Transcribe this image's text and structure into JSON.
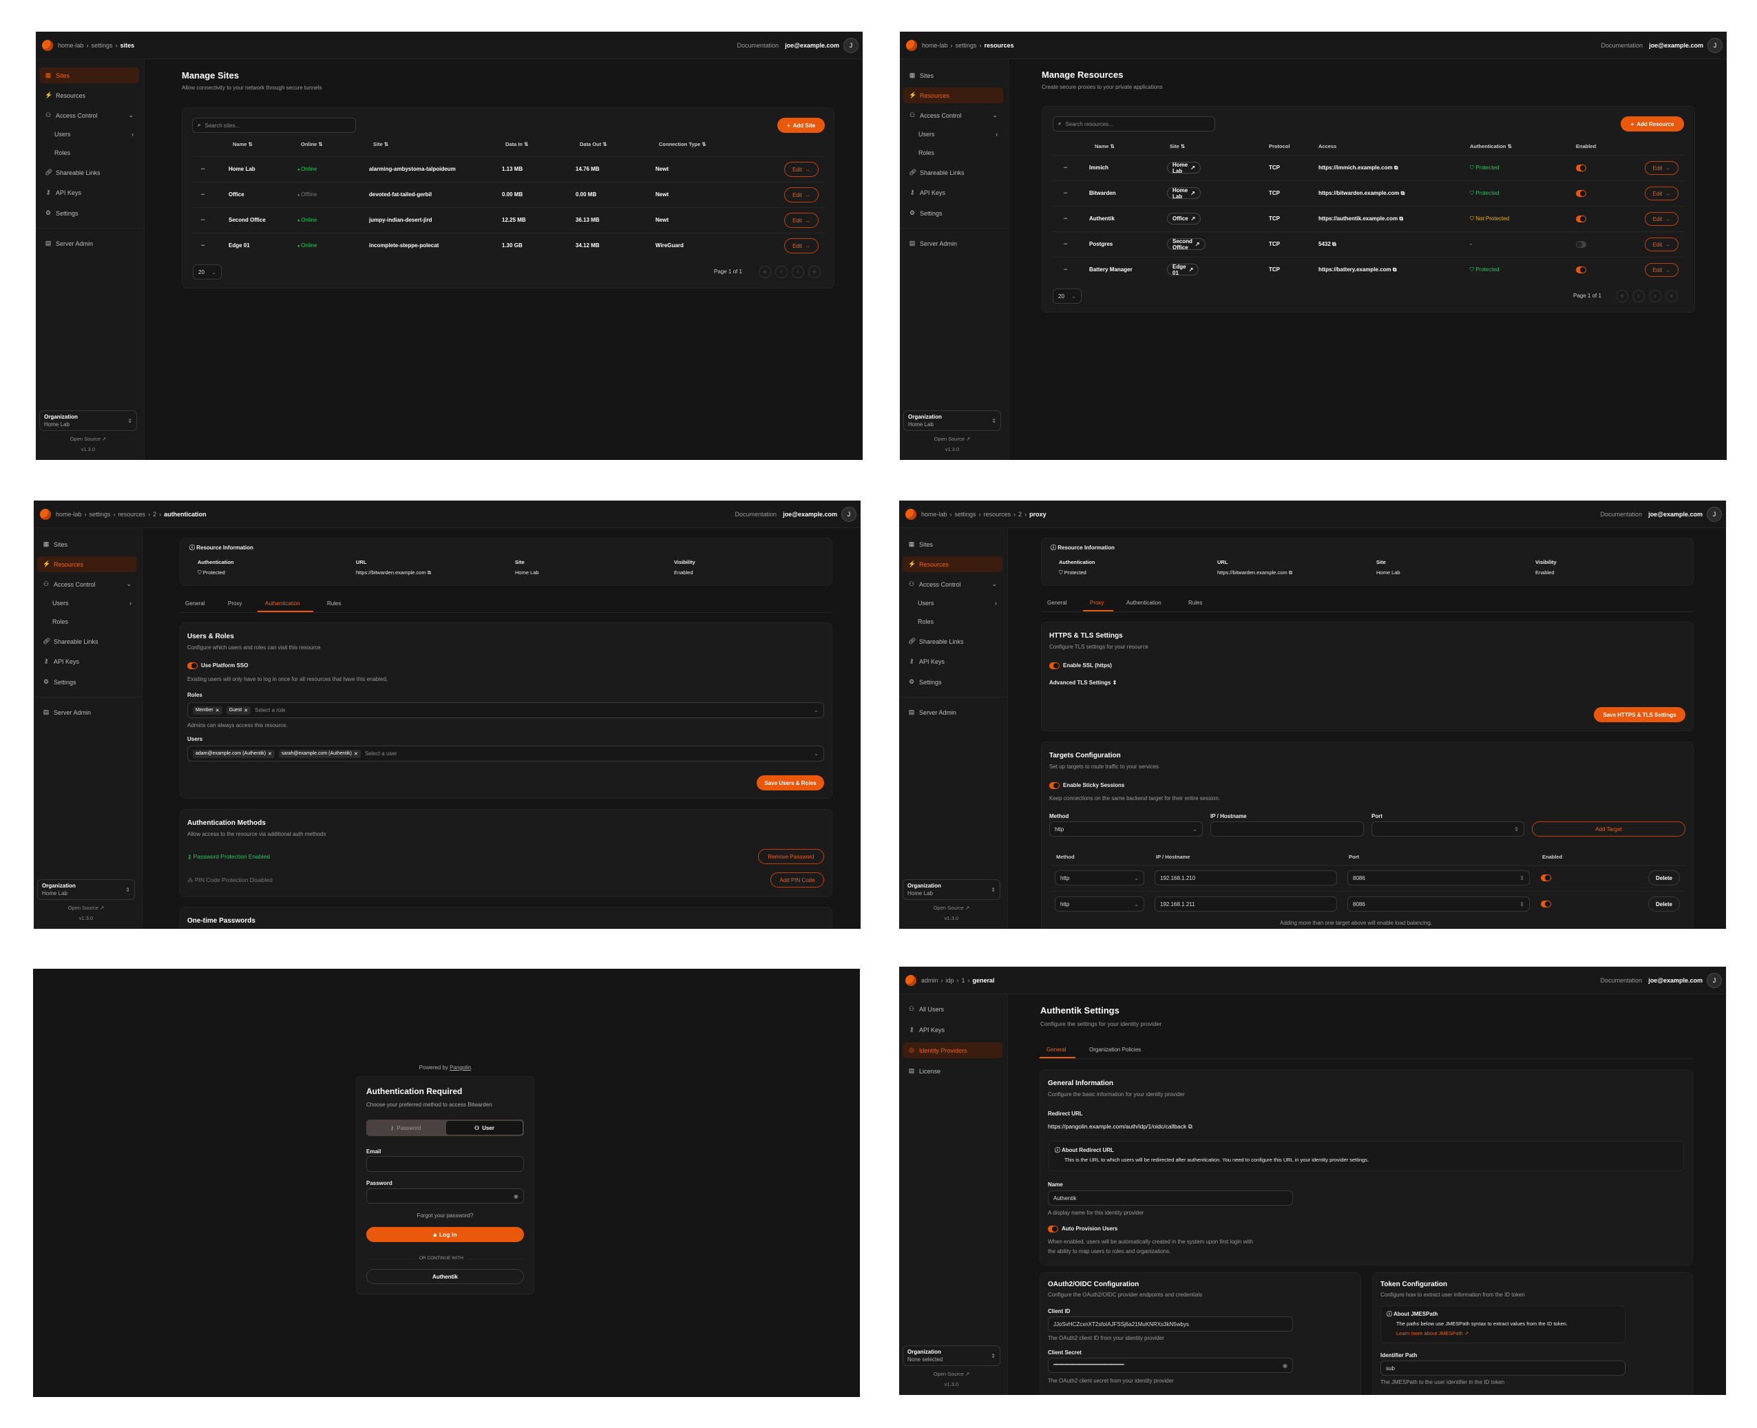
{
  "common": {
    "documentation": "Documentation",
    "user_email": "joe@example.com",
    "avatar_initial": "J",
    "accent_color": "#ea580c"
  },
  "org_sidebar": {
    "items": [
      {
        "label": "Sites",
        "icon": "sites-icon"
      },
      {
        "label": "Resources",
        "icon": "resources-icon"
      },
      {
        "label": "Access Control",
        "icon": "access-control-icon",
        "chevron": "down"
      },
      {
        "label": "Users",
        "sub": true,
        "chevron": "right"
      },
      {
        "label": "Roles",
        "sub": true
      },
      {
        "label": "Shareable Links",
        "icon": "link-icon"
      },
      {
        "label": "API Keys",
        "icon": "key-icon"
      },
      {
        "label": "Settings",
        "icon": "gear-icon"
      },
      {
        "label": "Server Admin",
        "icon": "server-icon"
      }
    ],
    "org_label": "Organization",
    "org_value": "Home Lab",
    "open_source": "Open Source",
    "version": "v1.3.0"
  },
  "admin_sidebar": {
    "items": [
      {
        "label": "All Users",
        "icon": "users-icon"
      },
      {
        "label": "API Keys",
        "icon": "key-icon"
      },
      {
        "label": "Identity Providers",
        "icon": "fingerprint-icon"
      },
      {
        "label": "License",
        "icon": "license-icon"
      }
    ],
    "org_label": "Organization",
    "org_value": "None selected",
    "open_source": "Open Source",
    "version": "v1.3.0"
  },
  "sites_page": {
    "breadcrumb": [
      "home-lab",
      "settings",
      "sites"
    ],
    "title": "Manage Sites",
    "subtitle": "Allow connectivity to your network through secure tunnels",
    "search_placeholder": "Search sites...",
    "add_button": "Add Site",
    "columns": [
      "Name",
      "Online",
      "Site",
      "Data In",
      "Data Out",
      "Connection Type"
    ],
    "rows": [
      {
        "name": "Home Lab",
        "online": "Online",
        "status": "online",
        "site": "alarming-ambystoma-talpoideum",
        "data_in": "1.13 MB",
        "data_out": "14.76 MB",
        "connection_type": "Newt"
      },
      {
        "name": "Office",
        "online": "Offline",
        "status": "offline",
        "site": "devoted-fat-tailed-gerbil",
        "data_in": "0.00 MB",
        "data_out": "0.00 MB",
        "connection_type": "Newt"
      },
      {
        "name": "Second Office",
        "online": "Online",
        "status": "online",
        "site": "jumpy-indian-desert-jird",
        "data_in": "12.25 MB",
        "data_out": "36.13 MB",
        "connection_type": "Newt"
      },
      {
        "name": "Edge 01",
        "online": "Online",
        "status": "online",
        "site": "incomplete-steppe-polecat",
        "data_in": "1.30 GB",
        "data_out": "34.12 MB",
        "connection_type": "WireGuard"
      }
    ],
    "edit_label": "Edit",
    "page_size": "20",
    "page_info": "Page 1 of 1"
  },
  "resources_page": {
    "breadcrumb": [
      "home-lab",
      "settings",
      "resources"
    ],
    "title": "Manage Resources",
    "subtitle": "Create secure proxies to your private applications",
    "search_placeholder": "Search resources...",
    "add_button": "Add Resource",
    "columns": [
      "Name",
      "Site",
      "Protocol",
      "Access",
      "Authentication",
      "Enabled"
    ],
    "rows": [
      {
        "name": "Immich",
        "site": "Home Lab",
        "protocol": "TCP",
        "access": "https://immich.example.com",
        "auth": "Protected",
        "auth_state": "protected",
        "enabled": true
      },
      {
        "name": "Bitwarden",
        "site": "Home Lab",
        "protocol": "TCP",
        "access": "https://bitwarden.example.com",
        "auth": "Protected",
        "auth_state": "protected",
        "enabled": true
      },
      {
        "name": "Authentik",
        "site": "Office",
        "protocol": "TCP",
        "access": "https://authentik.example.com",
        "auth": "Not Protected",
        "auth_state": "not-protected",
        "enabled": true
      },
      {
        "name": "Postgres",
        "site": "Second Office",
        "protocol": "TCP",
        "access": "5432",
        "auth": "-",
        "auth_state": "none",
        "enabled": false
      },
      {
        "name": "Battery Manager",
        "site": "Edge 01",
        "protocol": "TCP",
        "access": "https://battery.example.com",
        "auth": "Protected",
        "auth_state": "protected",
        "enabled": true
      }
    ],
    "edit_label": "Edit",
    "page_size": "20",
    "page_info": "Page 1 of 1"
  },
  "resource_info": {
    "title": "Resource Information",
    "auth_label": "Authentication",
    "auth_value": "Protected",
    "url_label": "URL",
    "url_value": "https://bitwarden.example.com",
    "site_label": "Site",
    "site_value": "Home Lab",
    "visibility_label": "Visibility",
    "visibility_value": "Enabled",
    "tabs": [
      "General",
      "Proxy",
      "Authentication",
      "Rules"
    ]
  },
  "auth_page": {
    "breadcrumb": [
      "home-lab",
      "settings",
      "resources",
      "2",
      "authentication"
    ],
    "users_roles": {
      "title": "Users & Roles",
      "desc": "Configure which users and roles can visit this resource",
      "sso_label": "Use Platform SSO",
      "sso_enabled": true,
      "sso_help": "Existing users will only have to log in once for all resources that have this enabled.",
      "roles_label": "Roles",
      "roles": [
        "Member",
        "Guest"
      ],
      "roles_placeholder": "Select a role",
      "roles_help": "Admins can always access this resource.",
      "users_label": "Users",
      "users": [
        "adam@example.com (Authentik)",
        "sarah@example.com (Authentik)"
      ],
      "users_placeholder": "Select a user",
      "save_button": "Save Users & Roles"
    },
    "auth_methods": {
      "title": "Authentication Methods",
      "desc": "Allow access to the resource via additional auth methods",
      "password_status": "Password Protection Enabled",
      "remove_password": "Remove Password",
      "pin_status": "PIN Code Protection Disabled",
      "add_pin": "Add PIN Code"
    },
    "otp_title": "One-time Passwords"
  },
  "proxy_page": {
    "breadcrumb": [
      "home-lab",
      "settings",
      "resources",
      "2",
      "proxy"
    ],
    "tls": {
      "title": "HTTPS & TLS Settings",
      "desc": "Configure TLS settings for your resource",
      "ssl_label": "Enable SSL (https)",
      "ssl_enabled": true,
      "advanced_label": "Advanced TLS Settings",
      "save_button": "Save HTTPS & TLS Settings"
    },
    "targets": {
      "title": "Targets Configuration",
      "desc": "Set up targets to route traffic to your services",
      "sticky_label": "Enable Sticky Sessions",
      "sticky_enabled": true,
      "sticky_help": "Keep connections on the same backend target for their entire session.",
      "method_label": "Method",
      "ip_label": "IP / Hostname",
      "port_label": "Port",
      "method_value": "http",
      "add_button": "Add Target",
      "columns": [
        "Method",
        "IP / Hostname",
        "Port",
        "Enabled"
      ],
      "rows": [
        {
          "method": "http",
          "ip": "192.168.1.210",
          "port": "8086",
          "enabled": true
        },
        {
          "method": "http",
          "ip": "192.168.1.211",
          "port": "8086",
          "enabled": true
        }
      ],
      "delete_label": "Delete",
      "footnote": "Adding more than one target above will enable load balancing."
    }
  },
  "login_page": {
    "powered_by": "Powered by",
    "powered_link": "Pangolin",
    "title": "Authentication Required",
    "desc": "Choose your preferred method to access Bitwarden",
    "tab_password": "Password",
    "tab_user": "User",
    "email_label": "Email",
    "email_value": "",
    "password_label": "Password",
    "password_value": "",
    "forgot": "Forgot your password?",
    "login_button": "Log In",
    "divider": "OR CONTINUE WITH",
    "provider_button": "Authentik"
  },
  "idp_page": {
    "breadcrumb": [
      "admin",
      "idp",
      "1",
      "general"
    ],
    "title": "Authentik Settings",
    "subtitle": "Configure the settings for your identity provider",
    "tabs": [
      "General",
      "Organization Policies"
    ],
    "general": {
      "title": "General Information",
      "desc": "Configure the basic information for your identity provider",
      "redirect_label": "Redirect URL",
      "redirect_url": "https://pangolin.example.com/auth/idp/1/oidc/callback",
      "about_title": "About Redirect URL",
      "about_text": "This is the URL to which users will be redirected after authentication. You need to configure this URL in your identity provider settings.",
      "name_label": "Name",
      "name_value": "Authentik",
      "name_help": "A display name for this identity provider",
      "auto_label": "Auto Provision Users",
      "auto_enabled": true,
      "auto_help_1": "When enabled, users will be automatically created in the system upon first login with",
      "auto_help_2": "the ability to map users to roles and organizations."
    },
    "oauth": {
      "title": "OAuth2/OIDC Configuration",
      "desc": "Configure the OAuth2/OIDC provider endpoints and credentials",
      "client_id_label": "Client ID",
      "client_id": "JJoSvHCZcxnXT2sfoIAJFSSj6a21MuKNRXs3kN5wbys",
      "client_id_help": "The OAuth2 client ID from your identity provider",
      "client_secret_label": "Client Secret",
      "client_secret": "••••••••••••••••••••••••••••••••••••••••••••••••••••••••••••••••",
      "client_secret_help": "The OAuth2 client secret from your identity provider"
    },
    "token": {
      "title": "Token Configuration",
      "desc": "Configure how to extract user information from the ID token",
      "about_title": "About JMESPath",
      "about_text": "The paths below use JMESPath syntax to extract values from the ID token.",
      "about_link": "Learn more about JMESPath",
      "identifier_label": "Identifier Path",
      "identifier_value": "sub",
      "identifier_help": "The JMESPath to the user identifier in the ID token"
    }
  }
}
